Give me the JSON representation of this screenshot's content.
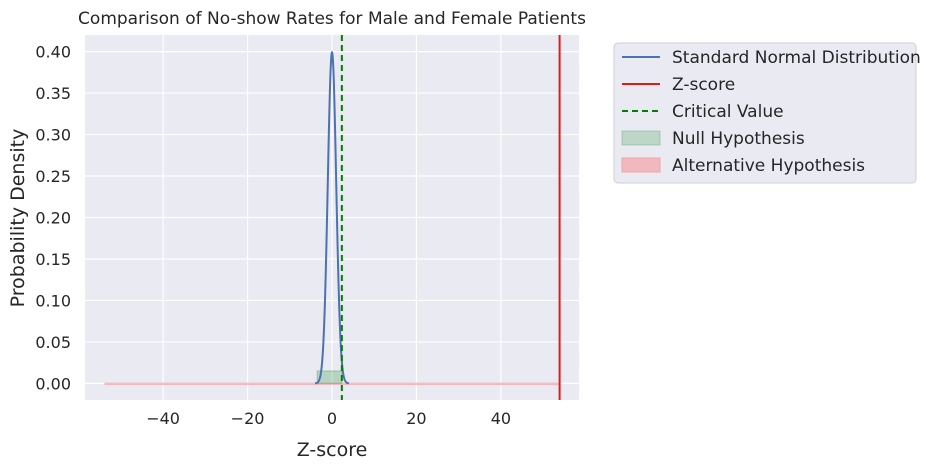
{
  "chart_data": {
    "type": "line",
    "title": "Comparison of No-show Rates for Male and Female Patients",
    "xlabel": "Z-score",
    "ylabel": "Probability Density",
    "xlim": [
      -58.5,
      58.5
    ],
    "ylim": [
      -0.02,
      0.42
    ],
    "x_ticks": [
      -40,
      -20,
      0,
      20,
      40
    ],
    "x_tick_labels": [
      "−40",
      "−20",
      "0",
      "20",
      "40"
    ],
    "y_ticks": [
      0.0,
      0.05,
      0.1,
      0.15,
      0.2,
      0.25,
      0.3,
      0.35,
      0.4
    ],
    "y_tick_labels": [
      "0.00",
      "0.05",
      "0.10",
      "0.15",
      "0.20",
      "0.25",
      "0.30",
      "0.35",
      "0.40"
    ],
    "grid": true,
    "legend_position": "outside-right",
    "series": [
      {
        "name": "Standard Normal Distribution",
        "kind": "pdf",
        "mean": 0,
        "sd": 1,
        "x_range": [
          -4,
          4
        ],
        "color": "#4c72b0"
      },
      {
        "name": "Z-score",
        "kind": "vline",
        "x": 53.9,
        "color": "#e31a1c"
      },
      {
        "name": "Critical Value",
        "kind": "vline-dashed",
        "x": 2.33,
        "color": "#008000"
      },
      {
        "name": "Null Hypothesis",
        "kind": "fill",
        "x_range": [
          -3.5,
          2.33
        ],
        "y": 0.015,
        "color": "#55a868"
      },
      {
        "name": "Alternative Hypothesis",
        "kind": "fill",
        "x_range": [
          -53.9,
          53.9
        ],
        "y": 0.0,
        "color": "#f4a3a8"
      }
    ]
  }
}
